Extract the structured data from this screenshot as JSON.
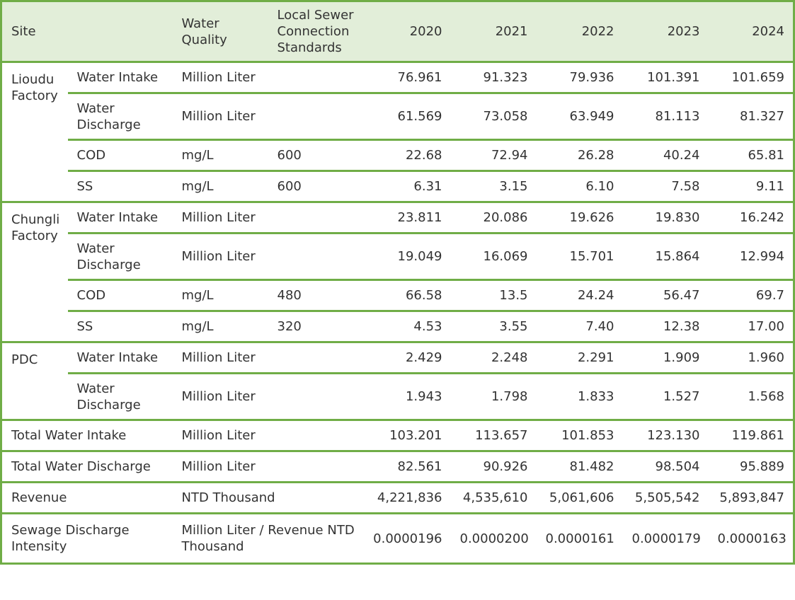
{
  "columns": {
    "site": "Site",
    "water_quality": "Water Quality",
    "standards": "Local Sewer Connection Standards",
    "years": [
      "2020",
      "2021",
      "2022",
      "2023",
      "2024"
    ]
  },
  "sites": [
    {
      "name": "Lioudu Factory",
      "rows": [
        {
          "item": "Water Intake",
          "unit": "Million Liter",
          "std": "",
          "values": [
            "76.961",
            "91.323",
            "79.936",
            "101.391",
            "101.659"
          ]
        },
        {
          "item": "Water Discharge",
          "unit": "Million Liter",
          "std": "",
          "values": [
            "61.569",
            "73.058",
            "63.949",
            "81.113",
            "81.327"
          ]
        },
        {
          "item": "COD",
          "unit": "mg/L",
          "std": "600",
          "values": [
            "22.68",
            "72.94",
            "26.28",
            "40.24",
            "65.81"
          ]
        },
        {
          "item": "SS",
          "unit": "mg/L",
          "std": "600",
          "values": [
            "6.31",
            "3.15",
            "6.10",
            "7.58",
            "9.11"
          ]
        }
      ]
    },
    {
      "name": "Chungli Factory",
      "rows": [
        {
          "item": "Water Intake",
          "unit": "Million Liter",
          "std": "",
          "values": [
            "23.811",
            "20.086",
            "19.626",
            "19.830",
            "16.242"
          ]
        },
        {
          "item": "Water Discharge",
          "unit": "Million Liter",
          "std": "",
          "values": [
            "19.049",
            "16.069",
            "15.701",
            "15.864",
            "12.994"
          ]
        },
        {
          "item": "COD",
          "unit": "mg/L",
          "std": "480",
          "values": [
            "66.58",
            "13.5",
            "24.24",
            "56.47",
            "69.7"
          ]
        },
        {
          "item": "SS",
          "unit": "mg/L",
          "std": "320",
          "values": [
            "4.53",
            "3.55",
            "7.40",
            "12.38",
            "17.00"
          ]
        }
      ]
    },
    {
      "name": "PDC",
      "rows": [
        {
          "item": "Water Intake",
          "unit": "Million Liter",
          "std": "",
          "values": [
            "2.429",
            "2.248",
            "2.291",
            "1.909",
            "1.960"
          ]
        },
        {
          "item": "Water Discharge",
          "unit": "Million Liter",
          "std": "",
          "values": [
            "1.943",
            "1.798",
            "1.833",
            "1.527",
            "1.568"
          ]
        }
      ]
    }
  ],
  "totals": [
    {
      "label": "Total Water Intake",
      "unit": "Million Liter",
      "values": [
        "103.201",
        "113.657",
        "101.853",
        "123.130",
        "119.861"
      ]
    },
    {
      "label": "Total Water Discharge",
      "unit": "Million Liter",
      "values": [
        "82.561",
        "90.926",
        "81.482",
        "98.504",
        "95.889"
      ]
    },
    {
      "label": "Revenue",
      "unit": "NTD Thousand",
      "values": [
        "4,221,836",
        "4,535,610",
        "5,061,606",
        "5,505,542",
        "5,893,847"
      ]
    },
    {
      "label": "Sewage Discharge Intensity",
      "unit": "Million Liter / Revenue NTD Thousand",
      "values": [
        "0.0000196",
        "0.0000200",
        "0.0000161",
        "0.0000179",
        "0.0000163"
      ]
    }
  ],
  "colors": {
    "border": "#70ad47",
    "header_bg": "#e2eed9",
    "text": "#333333"
  }
}
